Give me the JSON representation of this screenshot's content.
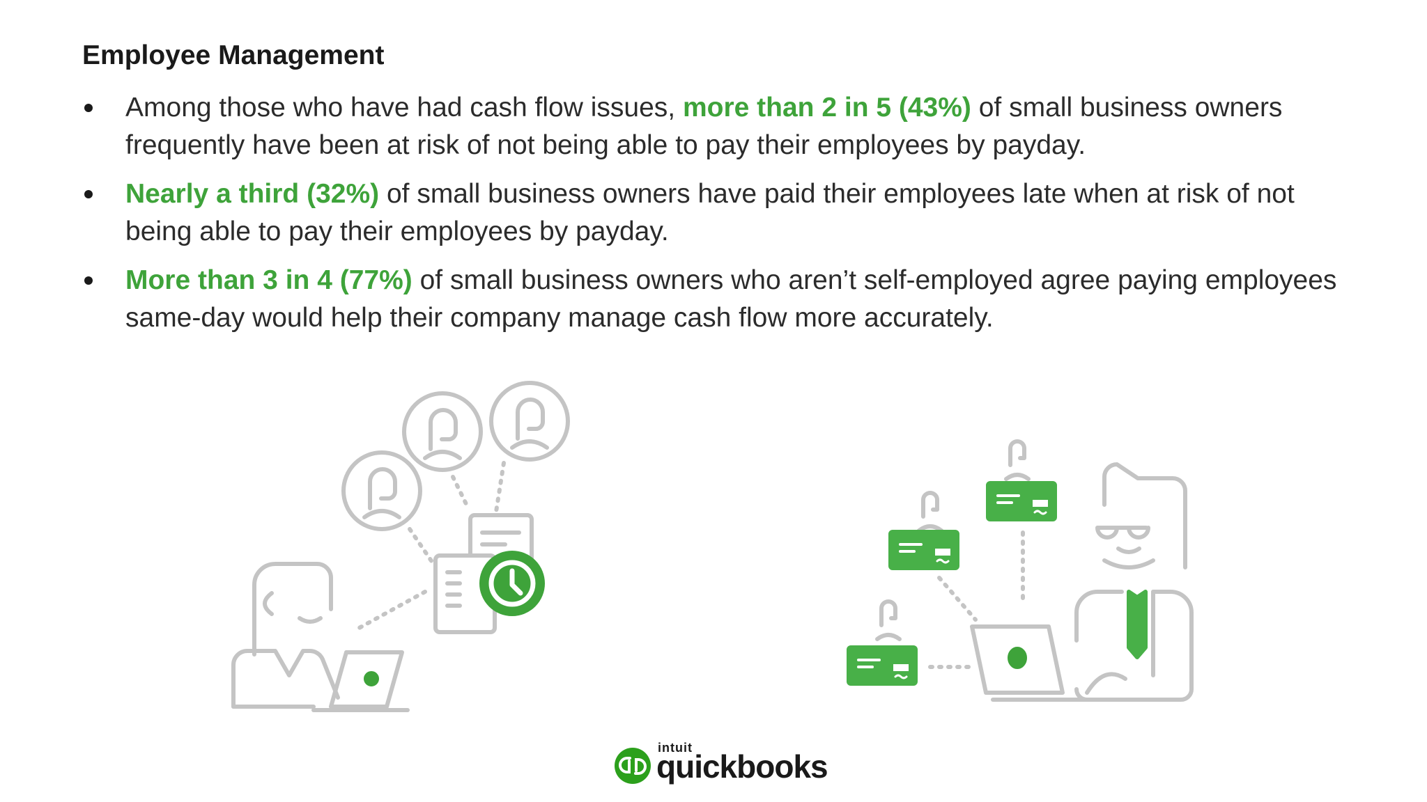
{
  "heading": "Employee Management",
  "bullets": [
    {
      "pre": "Among those who have had cash flow issues, ",
      "highlight": "more than 2 in 5 (43%)",
      "post": " of small business owners frequently have been at risk of not being able to pay their employees by payday."
    },
    {
      "pre": "",
      "highlight": "Nearly a third (32%)",
      "post": " of small business owners have paid their employees late when at risk of not being able to pay their employees by payday."
    },
    {
      "pre": "",
      "highlight": "More than 3 in 4 (77%)",
      "post": " of small business owners who aren’t self-employed agree paying employees same-day would help their company manage cash flow more accurately."
    }
  ],
  "logo": {
    "brand": "intuit",
    "product": "quickbooks",
    "mark_color": "#2ca01c",
    "icon": "quickbooks-logo-icon"
  },
  "colors": {
    "accent": "#3ea33a",
    "line_gray": "#c4c4c4",
    "card_green": "#48b048"
  },
  "illustrations": {
    "left": "employees-clock-laptop-illustration",
    "right": "payroll-cards-laptop-illustration"
  }
}
